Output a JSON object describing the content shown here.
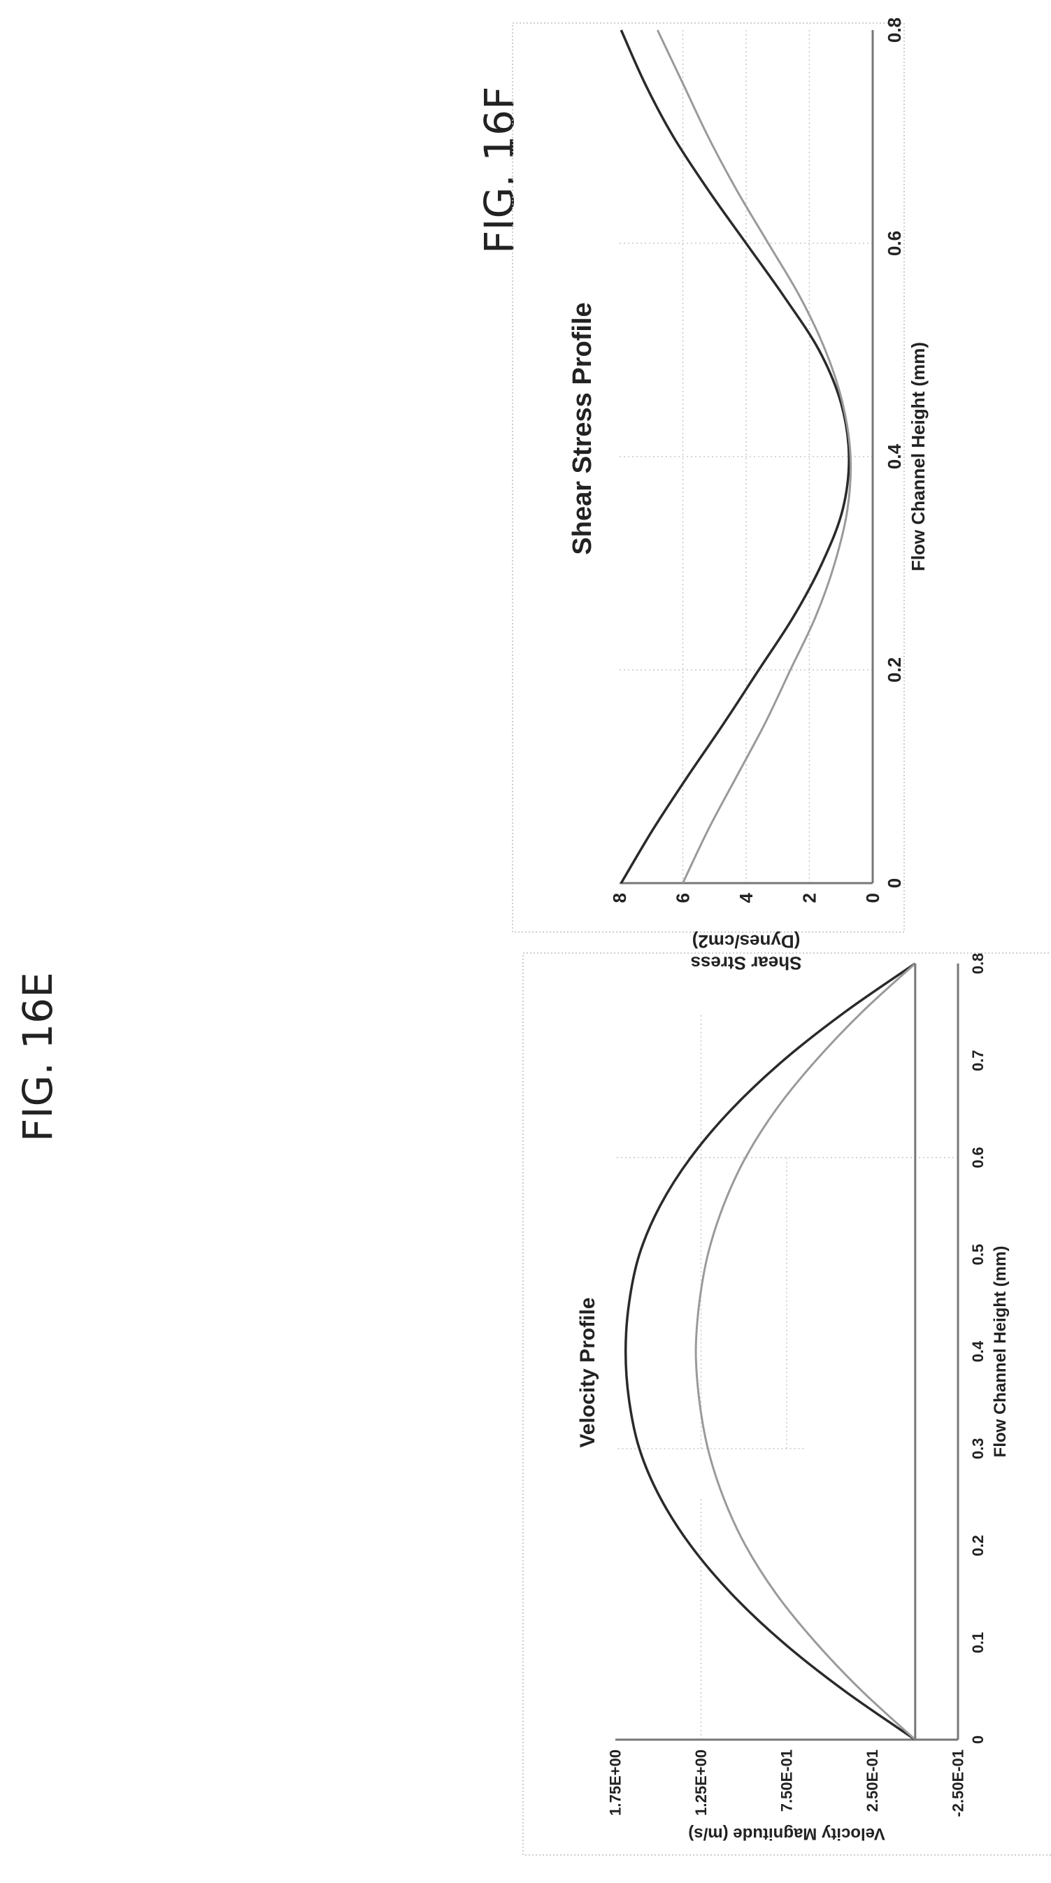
{
  "figures": {
    "e_label": "FIG. 16E",
    "f_label": "FIG. 16F"
  },
  "colors": {
    "dark_series": "#2a2a2a",
    "light_series": "#9a9a9a",
    "axis": "#777777",
    "grid": "#c8c8c8",
    "frame": "#bdbdbd"
  },
  "chart_data": [
    {
      "type": "line",
      "title": "Velocity Profile",
      "xlabel": "Flow Channel Height (mm)",
      "ylabel": "Velocity Magnitude (m/s)",
      "xlim": [
        0,
        0.8
      ],
      "ylim": [
        -0.25,
        1.75
      ],
      "x_ticks": [
        "0",
        "0.1",
        "0.2",
        "0.3",
        "0.4",
        "0.5",
        "0.6",
        "0.7",
        "0.8"
      ],
      "y_ticks": [
        "-2.50E-01",
        "2.50E-01",
        "7.50E-01",
        "1.25E+00",
        "1.75E+00"
      ],
      "grid": "sparse dotted",
      "legend": "none",
      "series": [
        {
          "x": [
            0,
            0.05,
            0.1,
            0.15,
            0.2,
            0.25,
            0.3,
            0.35,
            0.4,
            0.45,
            0.5,
            0.55,
            0.6,
            0.65,
            0.7,
            0.75,
            0.8
          ],
          "values": [
            0,
            0.41,
            0.77,
            1.07,
            1.31,
            1.49,
            1.61,
            1.67,
            1.69,
            1.67,
            1.61,
            1.49,
            1.31,
            1.07,
            0.77,
            0.41,
            0
          ]
        },
        {
          "x": [
            0,
            0.05,
            0.1,
            0.15,
            0.2,
            0.25,
            0.3,
            0.35,
            0.4,
            0.45,
            0.5,
            0.55,
            0.6,
            0.65,
            0.7,
            0.75,
            0.8
          ],
          "values": [
            0,
            0.31,
            0.58,
            0.81,
            0.99,
            1.12,
            1.21,
            1.26,
            1.28,
            1.26,
            1.21,
            1.12,
            0.99,
            0.81,
            0.58,
            0.31,
            0
          ]
        },
        {
          "x": [
            0,
            0.8
          ],
          "values": [
            0,
            0
          ]
        }
      ]
    },
    {
      "type": "line",
      "title": "Shear Stress Profile",
      "xlabel": "Flow Channel Height (mm)",
      "ylabel": "Shear Stress (Dynes/cm2)",
      "xlim": [
        0,
        0.8
      ],
      "ylim": [
        0,
        8
      ],
      "x_ticks": [
        "0",
        "0.2",
        "0.4",
        "0.6",
        "0.8"
      ],
      "y_ticks": [
        "0",
        "2",
        "4",
        "6",
        "8"
      ],
      "grid": "sparse dotted",
      "legend": "none",
      "series": [
        {
          "x": [
            0,
            0.05,
            0.1,
            0.15,
            0.2,
            0.25,
            0.3,
            0.35,
            0.4,
            0.45,
            0.5,
            0.55,
            0.6,
            0.65,
            0.7,
            0.75,
            0.8
          ],
          "values": [
            7.95,
            6.95,
            5.85,
            4.7,
            3.6,
            2.5,
            1.6,
            0.95,
            0.75,
            1.0,
            1.7,
            2.8,
            4.0,
            5.2,
            6.3,
            7.2,
            7.95
          ]
        },
        {
          "x": [
            0,
            0.05,
            0.1,
            0.15,
            0.2,
            0.25,
            0.3,
            0.35,
            0.4,
            0.45,
            0.5,
            0.55,
            0.6,
            0.65,
            0.7,
            0.75,
            0.8
          ],
          "values": [
            6.0,
            5.2,
            4.3,
            3.4,
            2.6,
            1.8,
            1.2,
            0.8,
            0.7,
            0.95,
            1.5,
            2.3,
            3.3,
            4.3,
            5.2,
            6.0,
            6.8
          ]
        }
      ]
    }
  ]
}
